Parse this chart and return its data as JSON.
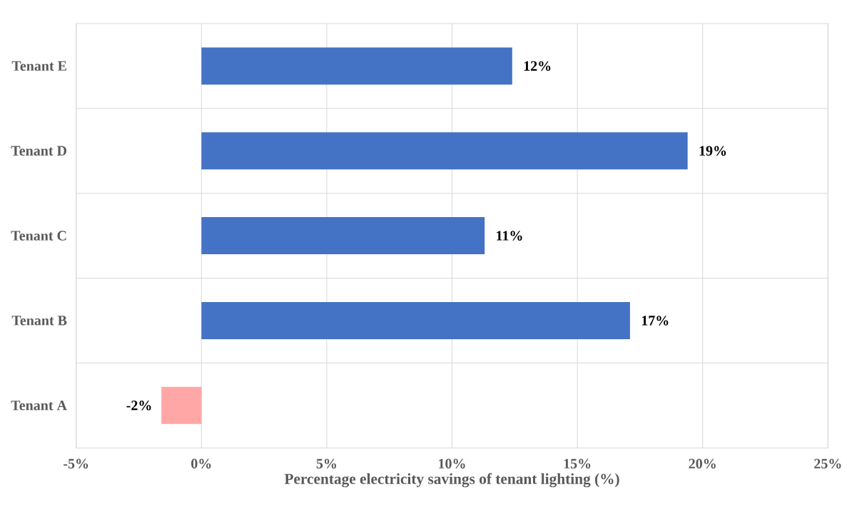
{
  "chart_data": {
    "type": "bar",
    "orientation": "horizontal",
    "categories": [
      "Tenant E",
      "Tenant D",
      "Tenant C",
      "Tenant B",
      "Tenant A"
    ],
    "values": [
      12.4,
      19.4,
      11.3,
      17.1,
      -1.6
    ],
    "value_labels": [
      "12%",
      "19%",
      "11%",
      "17%",
      "-2%"
    ],
    "colors": [
      "#4472c4",
      "#4472c4",
      "#4472c4",
      "#4472c4",
      "#ffa7a7"
    ],
    "xlabel": "Percentage electricity savings of tenant lighting (%)",
    "xlim": [
      -5,
      25
    ],
    "xticks": [
      {
        "value": -5,
        "label": "-5%"
      },
      {
        "value": 0,
        "label": "0%"
      },
      {
        "value": 5,
        "label": "5%"
      },
      {
        "value": 10,
        "label": "10%"
      },
      {
        "value": 15,
        "label": "15%"
      },
      {
        "value": 20,
        "label": "20%"
      },
      {
        "value": 25,
        "label": "25%"
      }
    ],
    "grid": true
  }
}
